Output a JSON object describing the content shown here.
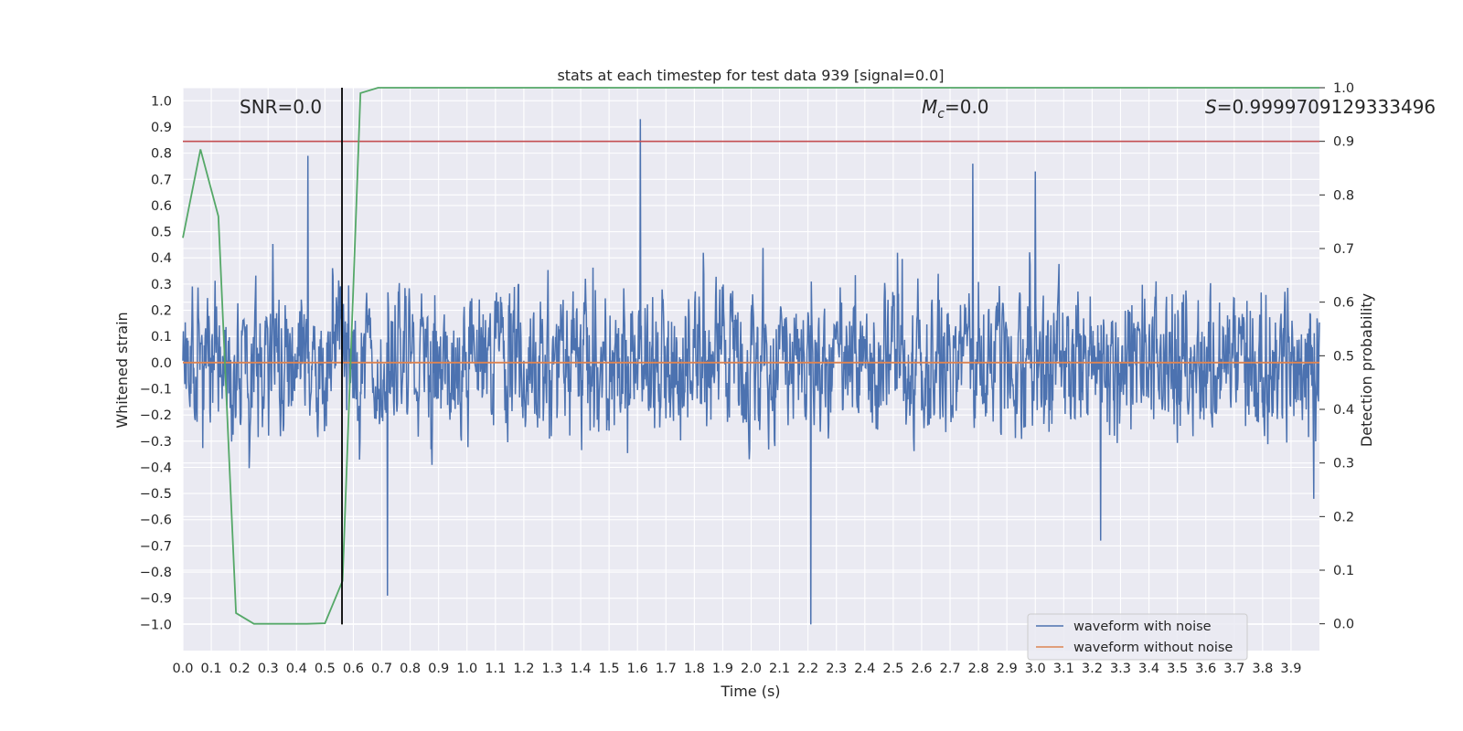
{
  "chart_data": {
    "type": "line",
    "title": "stats at each timestep for test data 939 [signal=0.0]",
    "xlabel": "Time (s)",
    "ylabel": "Whitened strain",
    "y2label": "Detection probability",
    "xlim": [
      0.0,
      4.0
    ],
    "ylim": [
      -1.1,
      1.05
    ],
    "y2lim": [
      -0.05,
      1.0
    ],
    "xticks": [
      "0.0",
      "0.1",
      "0.2",
      "0.3",
      "0.4",
      "0.5",
      "0.6",
      "0.7",
      "0.8",
      "0.9",
      "1.0",
      "1.1",
      "1.2",
      "1.3",
      "1.4",
      "1.5",
      "1.6",
      "1.7",
      "1.8",
      "1.9",
      "2.0",
      "2.1",
      "2.2",
      "2.3",
      "2.4",
      "2.5",
      "2.6",
      "2.7",
      "2.8",
      "2.9",
      "3.0",
      "3.1",
      "3.2",
      "3.3",
      "3.4",
      "3.5",
      "3.6",
      "3.7",
      "3.8",
      "3.9"
    ],
    "yticks": [
      "1.0",
      "0.9",
      "0.8",
      "0.7",
      "0.6",
      "0.5",
      "0.4",
      "0.3",
      "0.2",
      "0.1",
      "0.0",
      "−0.1",
      "−0.2",
      "−0.3",
      "−0.4",
      "−0.5",
      "−0.6",
      "−0.7",
      "−0.8",
      "−0.9",
      "−1.0"
    ],
    "y2ticks": [
      "1.0",
      "0.9",
      "0.8",
      "0.7",
      "0.6",
      "0.5",
      "0.4",
      "0.3",
      "0.2",
      "0.1",
      "0.0"
    ],
    "grid": true,
    "legend_position": "bottom-right",
    "annotations": {
      "snr": "SNR=0.0",
      "mc_symbol": "M",
      "mc_subscript": "c",
      "mc_value": "=0.0",
      "s_symbol": "S",
      "s_value": "=0.9999709129333496"
    },
    "threshold": {
      "axis": "right",
      "y": 0.9,
      "color": "#c44e52"
    },
    "marker_time": 0.56,
    "series": [
      {
        "name": "waveform with noise",
        "axis": "left",
        "color": "#4c72b0",
        "kind": "noise",
        "duration": 4.0,
        "amplitude_typical": 0.3,
        "peaks": [
          {
            "x": 0.44,
            "y": 0.79
          },
          {
            "x": 0.72,
            "y": -0.89
          },
          {
            "x": 1.61,
            "y": 0.93
          },
          {
            "x": 2.21,
            "y": -1.0
          },
          {
            "x": 2.78,
            "y": 0.76
          },
          {
            "x": 3.0,
            "y": 0.73
          },
          {
            "x": 3.23,
            "y": -0.68
          },
          {
            "x": 3.98,
            "y": -0.52
          }
        ]
      },
      {
        "name": "waveform without noise",
        "axis": "left",
        "color": "#dd8452",
        "x": [
          0.0,
          4.0
        ],
        "y": [
          0.0,
          0.0
        ]
      },
      {
        "axis": "right",
        "color": "#55a868",
        "x": [
          0.0,
          0.062,
          0.125,
          0.187,
          0.25,
          0.312,
          0.375,
          0.437,
          0.5,
          0.562,
          0.625,
          0.687,
          0.75,
          1.0,
          2.0,
          3.0,
          4.0
        ],
        "y": [
          0.72,
          0.885,
          0.76,
          0.02,
          0.0,
          0.0,
          0.0,
          0.0,
          0.001,
          0.08,
          0.99,
          1.0,
          1.0,
          1.0,
          1.0,
          1.0,
          1.0
        ]
      }
    ]
  }
}
